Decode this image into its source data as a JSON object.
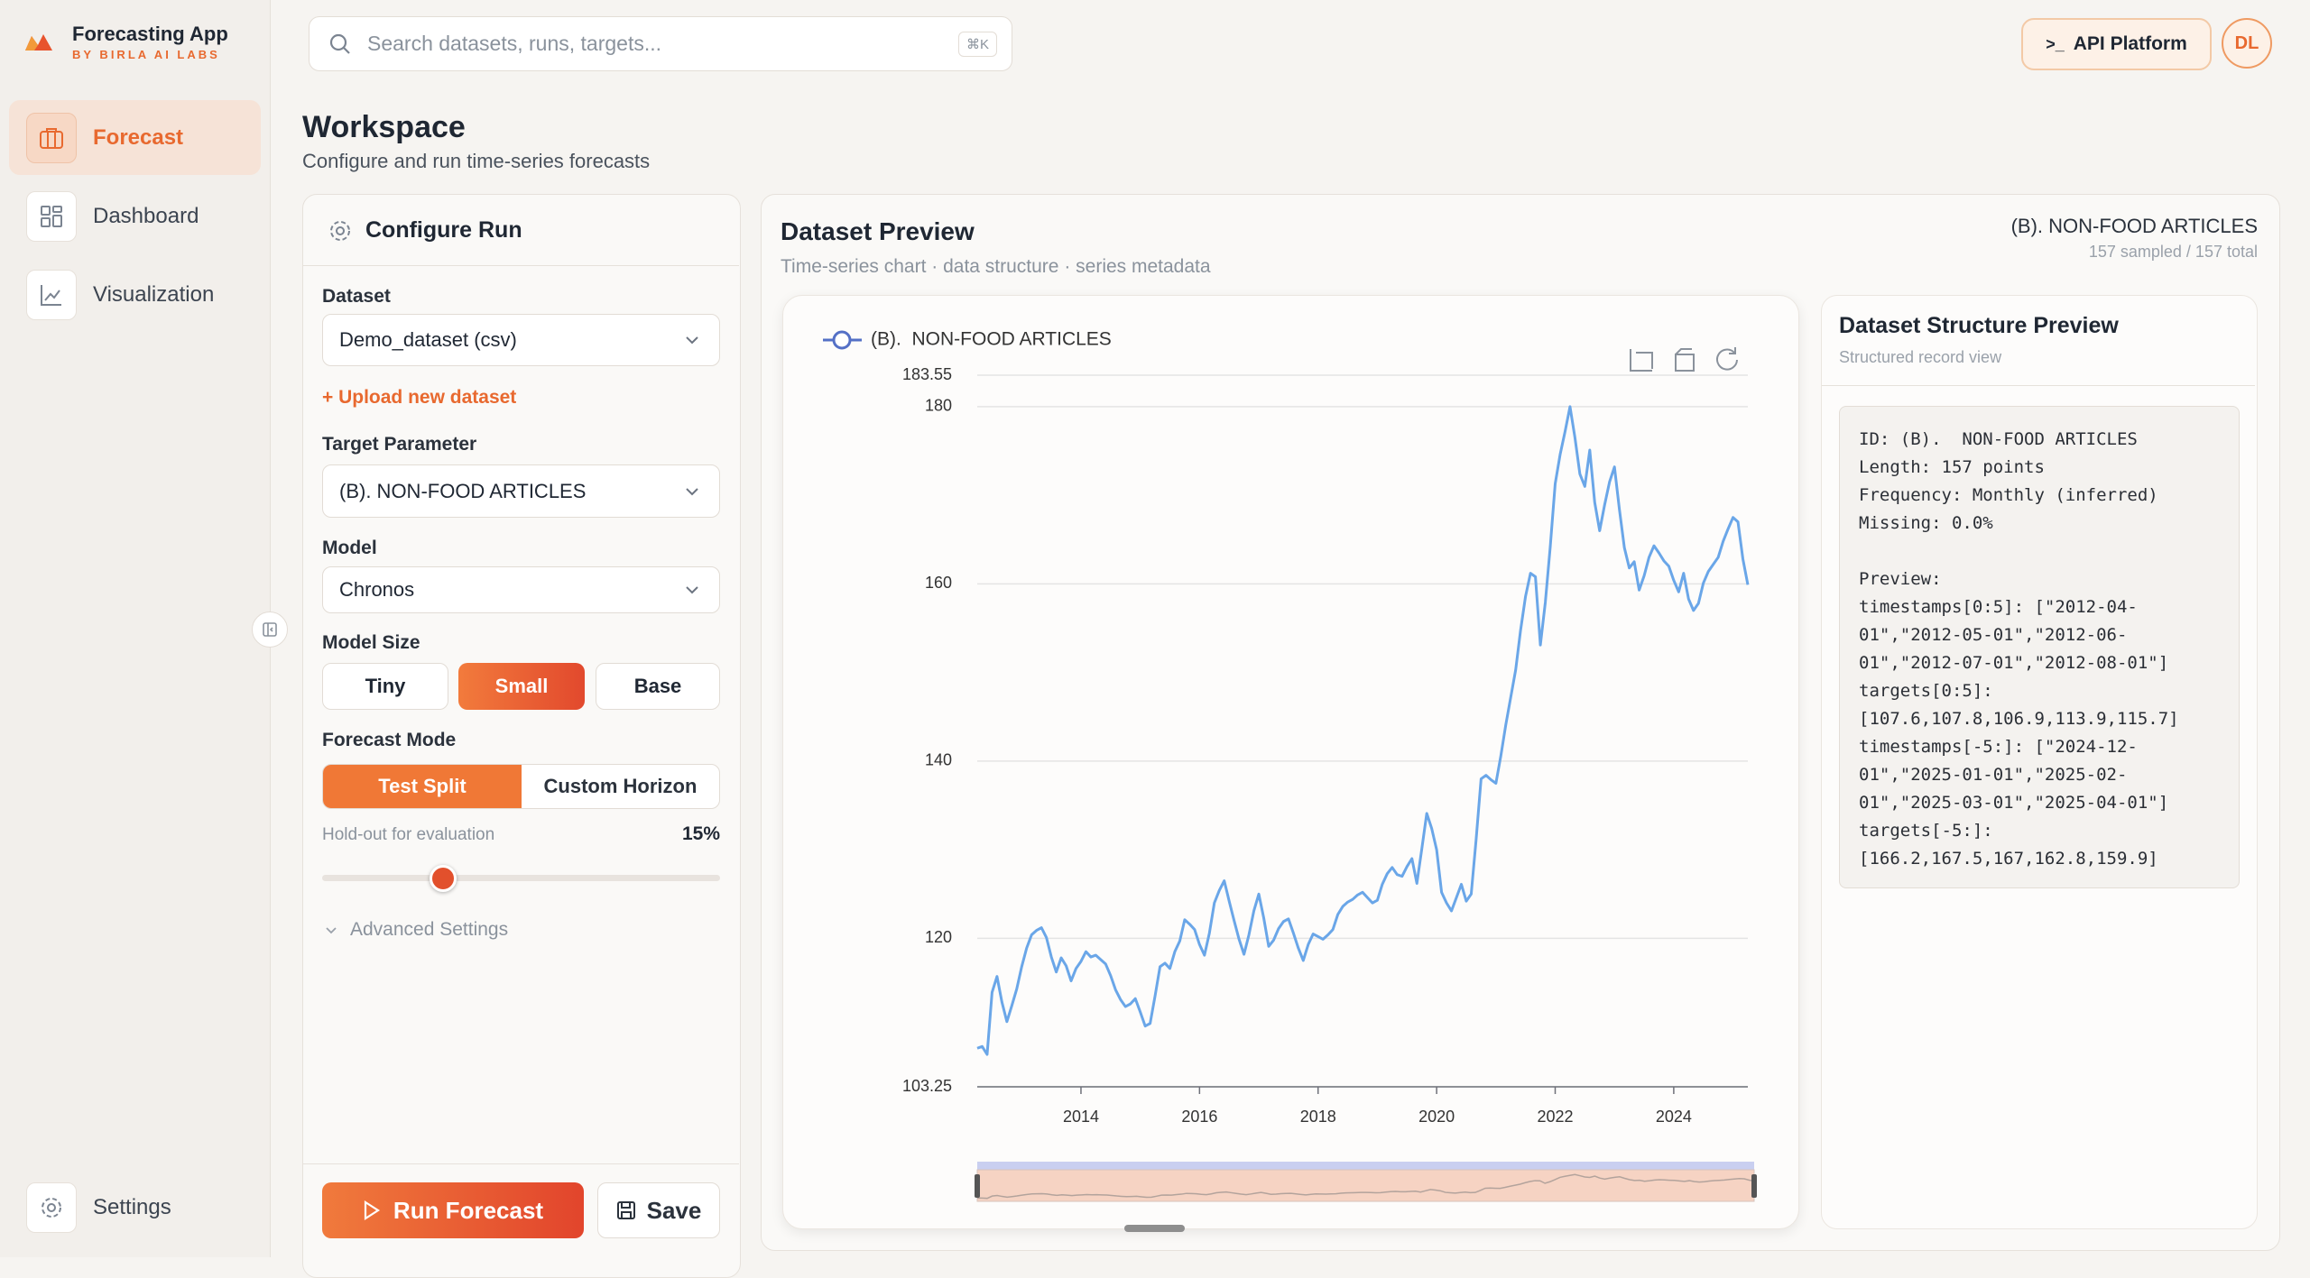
{
  "sidebar": {
    "app_name": "Forecasting App",
    "app_subtitle": "BY BIRLA AI LABS",
    "nav": [
      "Forecast",
      "Dashboard",
      "Visualization"
    ],
    "settings": "Settings"
  },
  "topbar": {
    "search_placeholder": "Search datasets, runs, targets...",
    "shortcut": "⌘K",
    "api_icon": ">_",
    "api_button": "API Platform",
    "avatar": "DL"
  },
  "header": {
    "title": "Workspace",
    "subtitle": "Configure and run time-series forecasts"
  },
  "configure": {
    "title": "Configure Run",
    "dataset_label": "Dataset",
    "dataset_value": "Demo_dataset (csv)",
    "upload": "+ Upload new dataset",
    "target_label": "Target Parameter",
    "target_value": "(B). NON-FOOD ARTICLES",
    "model_label": "Model",
    "model_value": "Chronos",
    "size_label": "Model Size",
    "sizes": [
      "Tiny",
      "Small",
      "Base"
    ],
    "mode_label": "Forecast Mode",
    "modes": [
      "Test Split",
      "Custom Horizon"
    ],
    "holdout_label": "Hold-out for evaluation",
    "holdout_value": "15%",
    "advanced": "Advanced Settings",
    "run": "Run Forecast",
    "save": "Save"
  },
  "preview": {
    "title": "Dataset Preview",
    "subtitle": "Time-series chart · data structure · series metadata",
    "series_label": "(B). NON-FOOD ARTICLES",
    "counts": "157 sampled / 157 total"
  },
  "chart_data": {
    "type": "line",
    "categories": [
      null,
      null,
      null,
      null,
      null,
      null,
      null,
      null,
      null,
      null,
      null,
      null,
      null,
      null,
      null,
      null,
      null,
      null,
      null,
      null,
      null,
      "2014",
      null,
      null,
      null,
      null,
      null,
      null,
      null,
      null,
      null,
      null,
      null,
      null,
      null,
      null,
      null,
      null,
      null,
      null,
      null,
      null,
      null,
      null,
      null,
      "2016",
      null,
      null,
      null,
      null,
      null,
      null,
      null,
      null,
      null,
      null,
      null,
      null,
      null,
      null,
      null,
      null,
      null,
      null,
      null,
      null,
      null,
      null,
      null,
      "2018",
      null,
      null,
      null,
      null,
      null,
      null,
      null,
      null,
      null,
      null,
      null,
      null,
      null,
      null,
      null,
      null,
      null,
      null,
      null,
      null,
      null,
      null,
      null,
      "2020",
      null,
      null,
      null,
      null,
      null,
      null,
      null,
      null,
      null,
      null,
      null,
      null,
      null,
      null,
      null,
      null,
      null,
      null,
      null,
      null,
      null,
      null,
      null,
      "2022",
      null,
      null,
      null,
      null,
      null,
      null,
      null,
      null,
      null,
      null,
      null,
      null,
      null,
      null,
      null,
      null,
      null,
      null,
      null,
      null,
      null,
      null,
      null,
      "2024",
      null,
      null,
      null,
      null,
      null,
      null,
      null,
      null,
      null,
      null,
      null,
      null,
      null,
      null,
      null
    ],
    "series": [
      {
        "name": "(B).  NON-FOOD ARTICLES",
        "color": "#6aa6e8",
        "values": [
          107.6,
          107.8,
          106.9,
          113.9,
          115.7,
          112.8,
          110.6,
          112.4,
          114.3,
          116.8,
          118.9,
          120.4,
          120.9,
          121.2,
          120.1,
          117.9,
          116.2,
          117.8,
          116.9,
          115.2,
          116.6,
          117.4,
          118.5,
          117.9,
          118.1,
          117.6,
          117.1,
          115.8,
          114.2,
          113.1,
          112.3,
          112.6,
          113.2,
          111.7,
          110.1,
          110.4,
          113.5,
          116.8,
          117.2,
          116.6,
          118.5,
          119.7,
          122.1,
          121.6,
          121.0,
          119.3,
          118.1,
          120.6,
          124.0,
          125.4,
          126.5,
          124.2,
          122.0,
          119.9,
          118.2,
          120.4,
          123.1,
          125.0,
          122.3,
          119.1,
          119.8,
          121.1,
          121.9,
          122.2,
          120.6,
          118.9,
          117.5,
          119.3,
          120.5,
          120.2,
          119.9,
          120.4,
          121.0,
          122.7,
          123.6,
          124.1,
          124.4,
          124.9,
          125.2,
          124.6,
          124.0,
          124.3,
          126.1,
          127.3,
          128.0,
          127.2,
          127.0,
          128.1,
          129.0,
          126.2,
          130.1,
          134.1,
          132.4,
          130.0,
          125.2,
          124.0,
          123.1,
          124.6,
          126.1,
          124.2,
          125.0,
          131.2,
          138.0,
          138.4,
          137.9,
          137.5,
          140.6,
          144.1,
          147.2,
          150.3,
          154.8,
          158.6,
          161.2,
          160.8,
          153.1,
          157.9,
          164.2,
          171.3,
          174.6,
          177.2,
          180.0,
          176.5,
          172.4,
          171.0,
          175.1,
          169.2,
          166.0,
          168.9,
          171.5,
          173.2,
          168.4,
          164.1,
          161.8,
          162.5,
          159.3,
          160.9,
          163.0,
          164.3,
          163.5,
          162.6,
          162.0,
          160.4,
          159.1,
          161.2,
          158.3,
          157.0,
          157.8,
          160.1,
          161.4,
          162.2,
          163.0,
          164.8,
          166.2,
          167.5,
          167.0,
          162.8,
          159.9
        ]
      }
    ],
    "ylim": [
      103.25,
      183.55
    ],
    "yticks": [
      103.25,
      120,
      140,
      160,
      180,
      183.55
    ],
    "grid": true
  },
  "structure": {
    "title": "Dataset Structure Preview",
    "subtitle": "Structured record view",
    "meta_lines": [
      "ID: (B).  NON-FOOD ARTICLES",
      "Length: 157 points",
      "Frequency: Monthly (inferred)",
      "Missing: 0.0%"
    ],
    "preview_lines": [
      "Preview:",
      "timestamps[0:5]: [\"2012-04-",
      "01\",\"2012-05-01\",\"2012-06-",
      "01\",\"2012-07-01\",\"2012-08-01\"]",
      "targets[0:5]:",
      "[107.6,107.8,106.9,113.9,115.7]",
      "timestamps[-5:]: [\"2024-12-",
      "01\",\"2025-01-01\",\"2025-02-",
      "01\",\"2025-03-01\",\"2025-04-01\"]",
      "targets[-5:]:",
      "[166.2,167.5,167,162.8,159.9]"
    ]
  }
}
